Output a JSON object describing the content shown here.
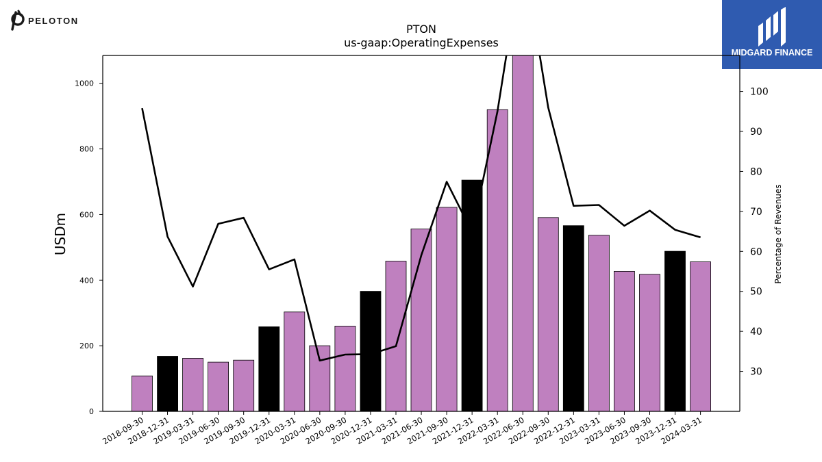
{
  "branding": {
    "left_logo_text": "PELOTON",
    "right_logo_text": "MIDGARD FINANCE",
    "right_logo_color": "#2f5bb0"
  },
  "chart_data": {
    "type": "bar",
    "title": "PTON",
    "subtitle": "us-gaap:OperatingExpenses",
    "ylabel": "USDm",
    "y2label": "Percentage of Revenues",
    "ylim": [
      0,
      1085
    ],
    "y2lim": [
      20,
      109
    ],
    "yticks": [
      "0",
      "200",
      "400",
      "600",
      "800",
      "1000"
    ],
    "y2ticks": [
      "30",
      "40",
      "50",
      "60",
      "70",
      "80",
      "90",
      "100"
    ],
    "categories": [
      "2018-09-30",
      "2018-12-31",
      "2019-03-31",
      "2019-06-30",
      "2019-09-30",
      "2019-12-31",
      "2020-03-31",
      "2020-06-30",
      "2020-09-30",
      "2020-12-31",
      "2021-03-31",
      "2021-06-30",
      "2021-09-30",
      "2021-12-31",
      "2022-03-31",
      "2022-06-30",
      "2022-09-30",
      "2022-12-31",
      "2023-03-31",
      "2023-06-30",
      "2023-09-30",
      "2023-12-31",
      "2024-03-31"
    ],
    "series": [
      {
        "type": "bar",
        "values": [
          108,
          168,
          162,
          150,
          156,
          258,
          303,
          200,
          260,
          366,
          458,
          556,
          622,
          705,
          920,
          1093,
          591,
          566,
          537,
          427,
          418,
          488,
          456
        ],
        "colors": [
          "#bf80bf",
          "#000000",
          "#bf80bf",
          "#bf80bf",
          "#bf80bf",
          "#000000",
          "#bf80bf",
          "#bf80bf",
          "#bf80bf",
          "#000000",
          "#bf80bf",
          "#bf80bf",
          "#bf80bf",
          "#000000",
          "#bf80bf",
          "#bf80bf",
          "#bf80bf",
          "#000000",
          "#bf80bf",
          "#bf80bf",
          "#bf80bf",
          "#000000",
          "#bf80bf"
        ]
      },
      {
        "type": "line",
        "axis": "right",
        "color": "#000000",
        "values": [
          95.8,
          63.7,
          51.2,
          66.9,
          68.4,
          55.5,
          58.0,
          32.7,
          34.2,
          34.3,
          36.3,
          59.0,
          77.4,
          64.8,
          95.0,
          135,
          96.0,
          71.4,
          71.6,
          66.4,
          70.2,
          65.4,
          63.5
        ]
      }
    ]
  }
}
